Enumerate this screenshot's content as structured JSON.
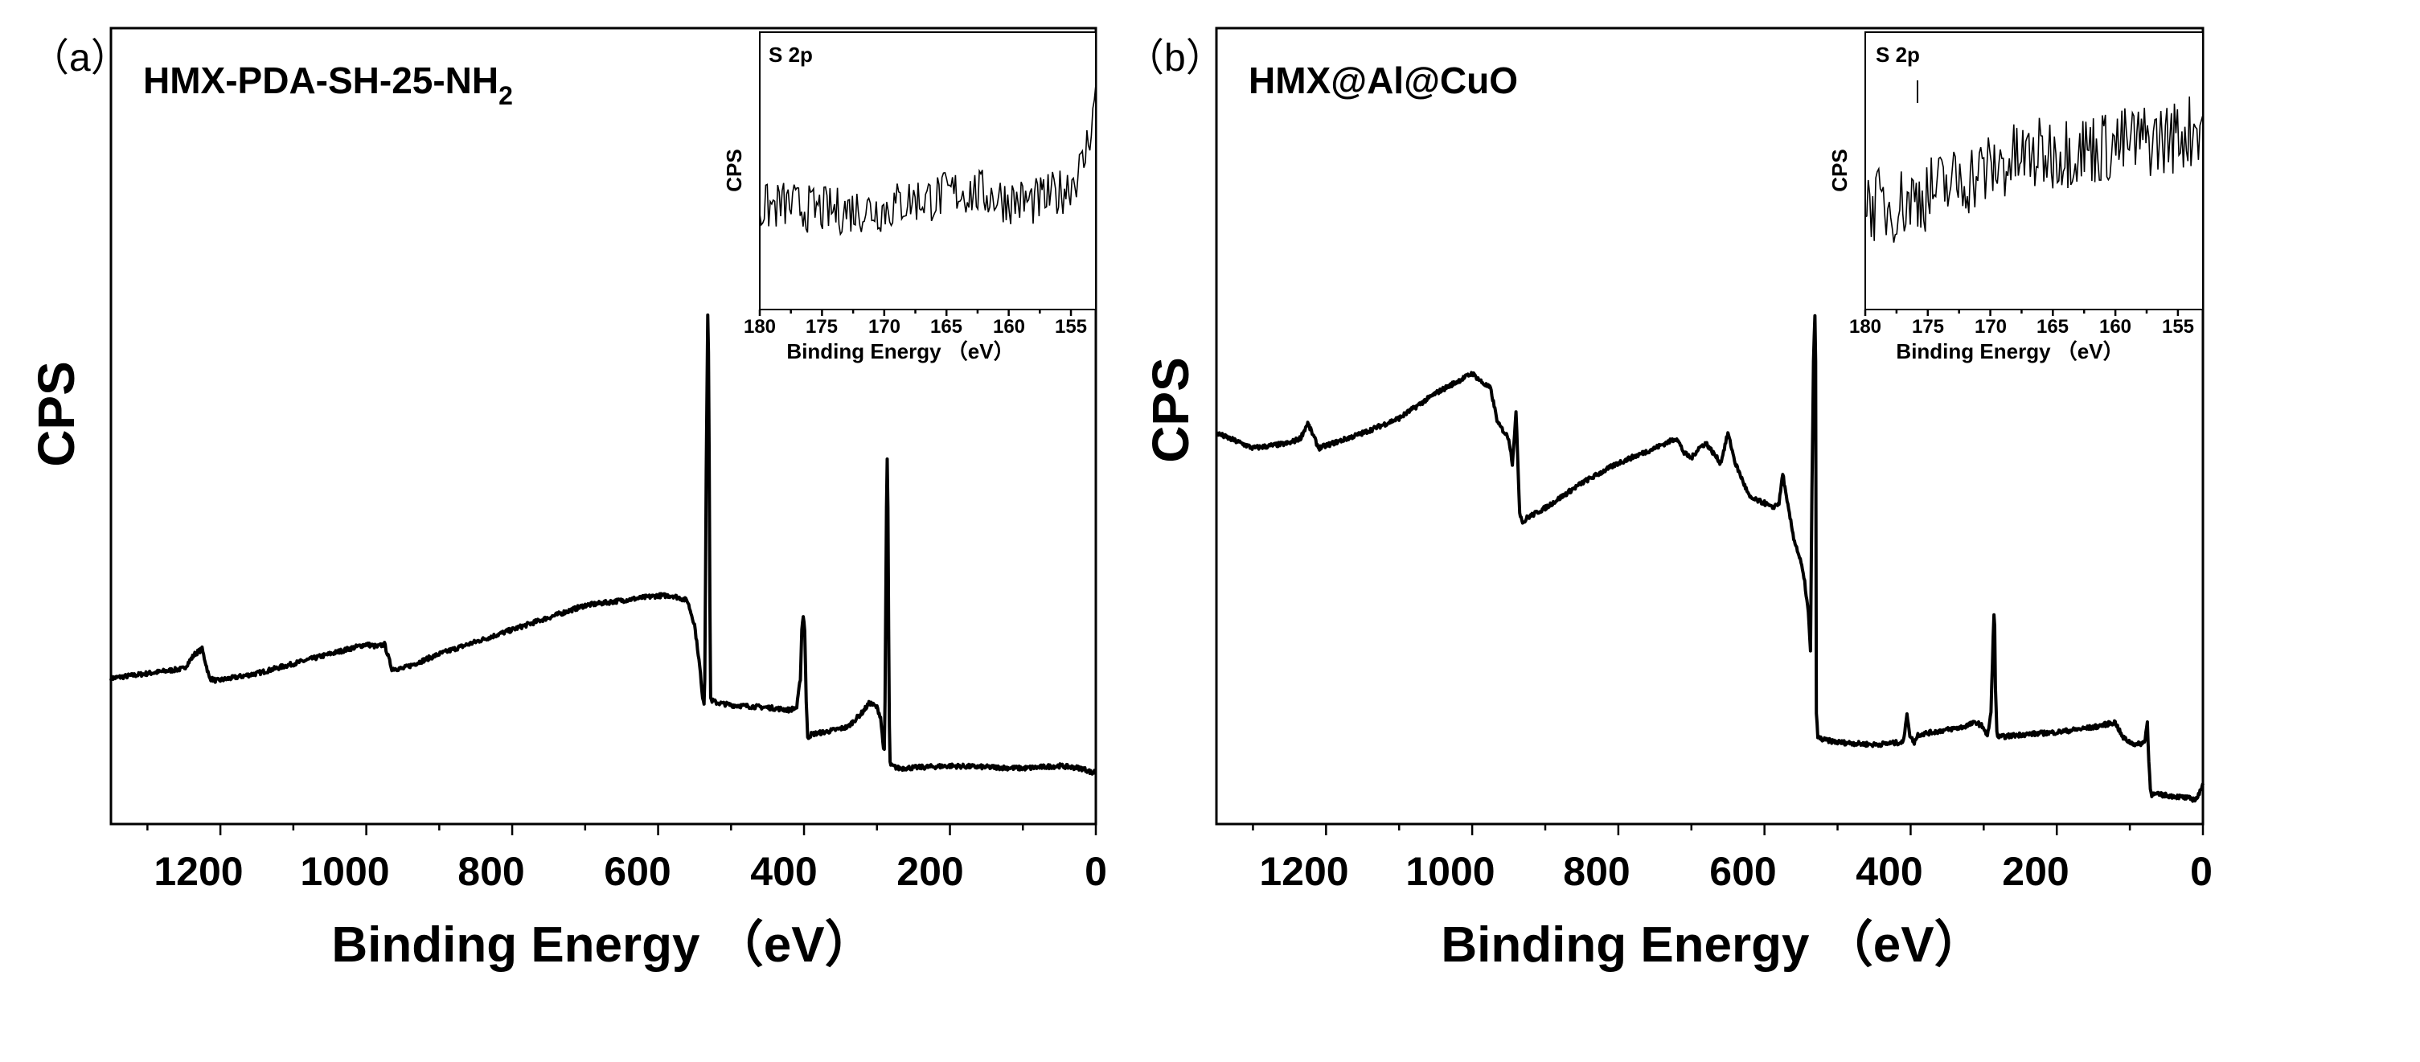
{
  "panels": [
    {
      "letter": "（a）",
      "sample_label": "HMX-PDA-SH-25-NH",
      "sample_subscript": "2",
      "ylabel": "CPS",
      "xlabel": "Binding Energy （eV）",
      "xticks": [
        "1200",
        "1000",
        "800",
        "600",
        "400",
        "200",
        "0"
      ],
      "inset": {
        "title": "S 2p",
        "ylabel": "CPS",
        "xlabel": "Binding Energy （eV）",
        "xticks": [
          "180",
          "175",
          "170",
          "165",
          "160",
          "155"
        ]
      }
    },
    {
      "letter": "（b）",
      "sample_label": "HMX@Al@CuO",
      "sample_subscript": "",
      "ylabel": "CPS",
      "xlabel": "Binding Energy （eV）",
      "xticks": [
        "1200",
        "1000",
        "800",
        "600",
        "400",
        "200",
        "0"
      ],
      "inset": {
        "title": "S 2p",
        "ylabel": "CPS",
        "xlabel": "Binding Energy （eV）",
        "xticks": [
          "180",
          "175",
          "170",
          "165",
          "160",
          "155"
        ]
      }
    }
  ],
  "chart_data": [
    {
      "type": "line",
      "title": "HMX-PDA-SH-25-NH2",
      "xlabel": "Binding Energy （eV）",
      "ylabel": "CPS",
      "xlim": [
        1350,
        0
      ],
      "ylim": [
        0,
        100
      ],
      "yticks_shown": false,
      "series": [
        {
          "name": "survey",
          "x": [
            1350,
            1300,
            1250,
            1235,
            1225,
            1215,
            1205,
            1150,
            1100,
            1050,
            1000,
            985,
            975,
            965,
            950,
            900,
            800,
            700,
            600,
            580,
            560,
            550,
            545,
            542,
            540,
            537,
            536,
            535,
            534,
            533,
            532,
            531,
            530,
            529,
            528,
            527,
            520,
            500,
            450,
            420,
            410,
            405,
            403,
            401,
            399,
            397,
            395,
            393,
            390,
            370,
            340,
            320,
            310,
            300,
            295,
            292,
            290,
            289,
            288,
            287,
            286,
            285,
            284,
            283,
            282,
            281,
            280,
            270,
            200,
            100,
            50,
            20,
            10,
            5,
            0
          ],
          "y": [
            25,
            26,
            27,
            30,
            31,
            25,
            24.5,
            26,
            28,
            30,
            32,
            31.5,
            32,
            27,
            27,
            30,
            35,
            40,
            42,
            42,
            41,
            36,
            30,
            26,
            22,
            20,
            25,
            45,
            68,
            85,
            100,
            92,
            70,
            40,
            21,
            20.5,
            20,
            19.5,
            19,
            18.5,
            19,
            25,
            35,
            38,
            35,
            20,
            13,
            13,
            13.5,
            14,
            15,
            18,
            20,
            19,
            17,
            12,
            10,
            20,
            40,
            60,
            70,
            60,
            35,
            15,
            8,
            7,
            7,
            6.5,
            7,
            6.5,
            7,
            6.5,
            6,
            5.5,
            6
          ]
        }
      ],
      "inset": {
        "title": "S 2p",
        "type": "line",
        "xlabel": "Binding Energy （eV）",
        "ylabel": "CPS",
        "xlim": [
          180,
          153
        ],
        "ylim": [
          0,
          100
        ],
        "series": [
          {
            "name": "S 2p",
            "x": [
              180,
              178,
              176,
              174,
              172,
              170,
              168,
              166,
              164,
              162,
              160,
              158,
              156,
              155,
              154,
              153.5,
              153
            ],
            "y": [
              40,
              42,
              40,
              39,
              40,
              40,
              44,
              45,
              48,
              47,
              44,
              43,
              47,
              52,
              60,
              75,
              90
            ]
          }
        ]
      }
    },
    {
      "type": "line",
      "title": "HMX@Al@CuO",
      "xlabel": "Binding Energy （eV）",
      "ylabel": "CPS",
      "xlim": [
        1350,
        0
      ],
      "ylim": [
        0,
        100
      ],
      "yticks_shown": false,
      "series": [
        {
          "name": "survey",
          "x": [
            1350,
            1300,
            1250,
            1235,
            1225,
            1210,
            1150,
            1100,
            1050,
            1000,
            985,
            975,
            965,
            950,
            945,
            940,
            935,
            930,
            925,
            900,
            850,
            800,
            750,
            720,
            710,
            700,
            690,
            680,
            660,
            650,
            640,
            620,
            600,
            590,
            580,
            575,
            570,
            560,
            550,
            545,
            540,
            537,
            535,
            533,
            531,
            530,
            529,
            527,
            520,
            500,
            450,
            410,
            405,
            402,
            400,
            395,
            390,
            330,
            310,
            300,
            295,
            290,
            288,
            286,
            285,
            284,
            282,
            280,
            250,
            200,
            150,
            120,
            110,
            100,
            90,
            80,
            76,
            74,
            72,
            70,
            60,
            30,
            10,
            5,
            0
          ],
          "y": [
            76,
            73,
            74,
            75,
            78,
            73,
            76,
            79,
            84,
            88,
            86,
            85,
            78,
            75,
            70,
            80,
            60,
            58,
            59,
            61,
            66,
            70,
            73,
            75,
            72,
            71,
            73,
            74,
            70,
            76,
            70,
            63,
            62,
            61,
            62,
            68,
            63,
            55,
            50,
            46,
            40,
            32,
            65,
            90,
            100,
            90,
            20,
            15,
            14.5,
            14,
            13.5,
            14,
            20,
            16,
            15,
            14,
            15.5,
            17,
            18,
            17,
            15,
            20,
            30,
            40,
            37,
            25,
            16,
            15,
            15.5,
            16,
            17,
            18,
            15,
            14,
            13.5,
            14,
            18,
            10,
            5,
            3.5,
            3.5,
            3,
            2.5,
            3.5,
            6
          ]
        }
      ],
      "inset": {
        "title": "S 2p",
        "type": "line",
        "xlabel": "Binding Energy （eV）",
        "ylabel": "CPS",
        "xlim": [
          180,
          153
        ],
        "ylim": [
          0,
          100
        ],
        "series": [
          {
            "name": "S 2p",
            "x": [
              180,
              178,
              176,
              174,
              172,
              170,
              168,
              166,
              164,
              162,
              160,
              158,
              156,
              154,
              153
            ],
            "y": [
              40,
              38,
              42,
              46,
              50,
              54,
              58,
              60,
              62,
              63,
              64,
              66,
              67,
              70,
              75
            ]
          }
        ]
      }
    }
  ]
}
